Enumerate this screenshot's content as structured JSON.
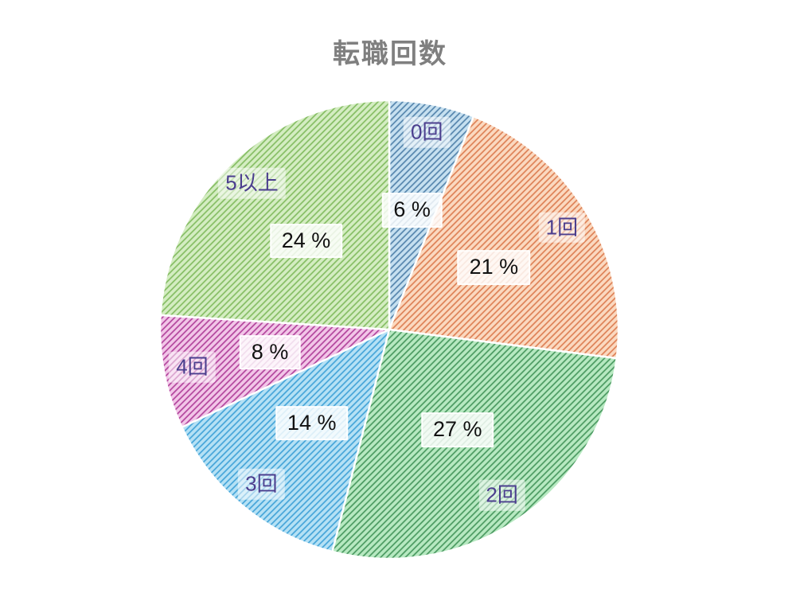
{
  "header": {
    "title": "転職回数",
    "title_color": "#7f7f7f"
  },
  "chart_data": {
    "type": "pie",
    "title": "転職回数",
    "categories": [
      "0回",
      "1回",
      "2回",
      "3回",
      "4回",
      "5以上"
    ],
    "values": [
      6,
      21,
      27,
      14,
      8,
      24
    ],
    "unit": "%",
    "start_angle": "12-oclock",
    "direction": "clockwise",
    "legend_position": "none",
    "hatch_style": "diagonal-lines",
    "slice_border_color": "#ffffff",
    "category_label_color": "#4b3e8e",
    "percent_label_color": "#111111",
    "slices": [
      {
        "label": "0回",
        "value": 6,
        "percent_text": "6 %",
        "base_color": "#c6e0f0",
        "hatch_color": "#5585ad"
      },
      {
        "label": "1回",
        "value": 21,
        "percent_text": "21 %",
        "base_color": "#fbd9c0",
        "hatch_color": "#dd8055"
      },
      {
        "label": "2回",
        "value": 27,
        "percent_text": "27 %",
        "base_color": "#b7e9c1",
        "hatch_color": "#4a9960"
      },
      {
        "label": "3回",
        "value": 14,
        "percent_text": "14 %",
        "base_color": "#b5e1f5",
        "hatch_color": "#44a4d8"
      },
      {
        "label": "4回",
        "value": 8,
        "percent_text": "8 %",
        "base_color": "#f2c6e8",
        "hatch_color": "#b2449c"
      },
      {
        "label": "5以上",
        "value": 24,
        "percent_text": "24 %",
        "base_color": "#d4edc2",
        "hatch_color": "#85bd63"
      }
    ]
  }
}
